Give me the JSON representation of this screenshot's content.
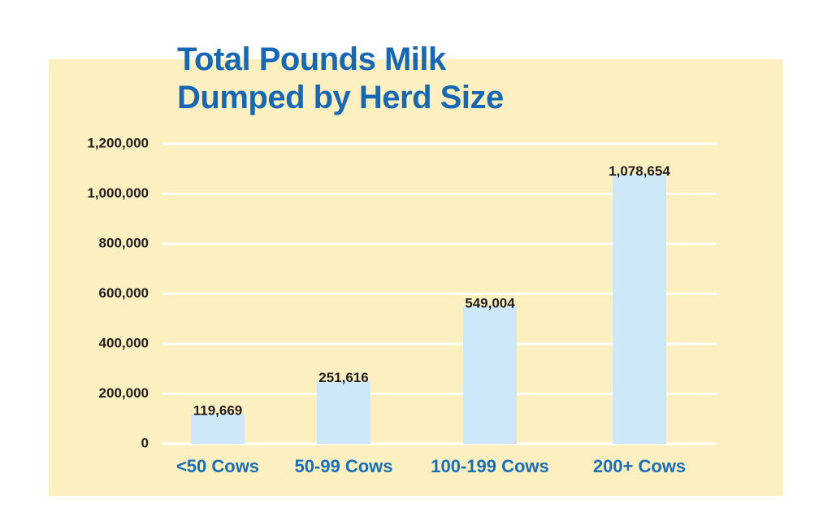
{
  "chart_data": {
    "type": "bar",
    "title": "Total Pounds Milk Dumped by Herd Size",
    "categories": [
      "<50 Cows",
      "50-99 Cows",
      "100-199 Cows",
      "200+ Cows"
    ],
    "values": [
      119669,
      251616,
      549004,
      1078654
    ],
    "value_labels": [
      "119,669",
      "251,616",
      "549,004",
      "1,078,654"
    ],
    "color": "#cde9f9",
    "ylim": [
      0,
      1200000
    ],
    "yticks": [
      0,
      {
        "value": 200000,
        "label": "200,000"
      },
      {
        "value": 400000,
        "label": "400,000"
      },
      {
        "value": 600000,
        "label": "600,000"
      },
      {
        "value": 800000,
        "label": "800,000"
      },
      {
        "value": 1000000,
        "label": "1,000,000"
      },
      {
        "value": 1200000,
        "label": "1,200,000"
      }
    ],
    "grid": true
  }
}
